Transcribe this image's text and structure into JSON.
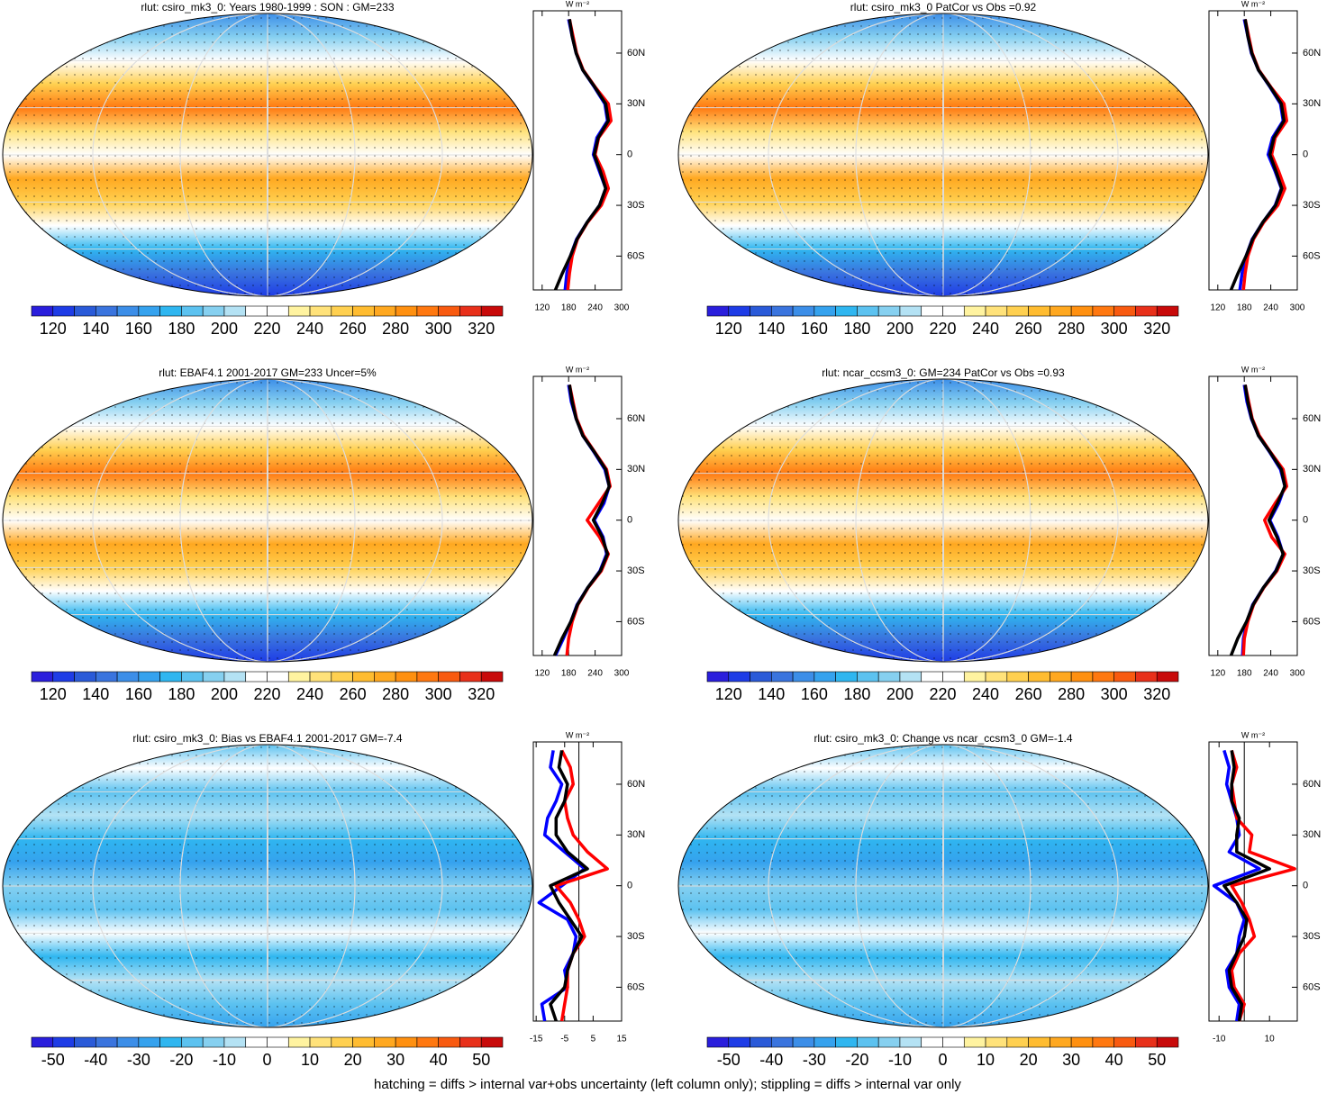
{
  "palette": [
    "#2a1edc",
    "#1e3ce6",
    "#2a5ad8",
    "#3a74de",
    "#3c8ee8",
    "#35a2ee",
    "#2fb6f0",
    "#5cc2f0",
    "#86d0f0",
    "#b4e2f4",
    "#ffffff",
    "#ffffff",
    "#fff3a0",
    "#ffe27a",
    "#ffd050",
    "#ffbc30",
    "#ffa820",
    "#ff9010",
    "#ff7810",
    "#f85a10",
    "#e8301a",
    "#c80a0a"
  ],
  "footnote": "hatching = diffs > internal var+obs uncertainty (left column only); stippling = diffs > internal var only",
  "panels": [
    {
      "title": "rlut: csiro_mk3_0: Years 1980-1999 : SON : GM=233",
      "colorbar": {
        "lim": [
          110,
          330
        ],
        "ticks": [
          120,
          140,
          160,
          180,
          200,
          220,
          240,
          260,
          280,
          300,
          320
        ]
      },
      "profile": {
        "type": "line",
        "unit": "W m⁻²",
        "xlim": [
          100,
          300
        ],
        "xticks": [
          120,
          180,
          240,
          300
        ],
        "ylim": [
          -80,
          85
        ],
        "yticks": [
          {
            "value": -60,
            "label": "60S"
          },
          {
            "value": -30,
            "label": "30S"
          },
          0,
          {
            "value": 30,
            "label": "30N"
          },
          {
            "value": 60,
            "label": "60N"
          }
        ],
        "lat": [
          -80,
          -70,
          -60,
          -50,
          -40,
          -30,
          -20,
          -10,
          0,
          10,
          20,
          30,
          40,
          50,
          60,
          70,
          80
        ],
        "series": [
          {
            "color": "#0000ff",
            "values": [
              172,
              176,
              184,
              198,
              222,
              250,
              264,
              250,
              236,
              244,
              268,
              262,
              238,
              212,
              197,
              188,
              180
            ]
          },
          {
            "color": "#ff0000",
            "values": [
              178,
              182,
              188,
              200,
              223,
              254,
              270,
              258,
              240,
              248,
              276,
              270,
              240,
              213,
              198,
              190,
              182
            ]
          },
          {
            "color": "#000000",
            "values": [
              150,
              166,
              184,
              199,
              222,
              250,
              264,
              252,
              238,
              247,
              270,
              264,
              239,
              212,
              197,
              188,
              182
            ]
          }
        ]
      }
    },
    {
      "title": "rlut: csiro_mk3_0 PatCor vs Obs =0.92",
      "colorbar": {
        "lim": [
          110,
          330
        ],
        "ticks": [
          120,
          140,
          160,
          180,
          200,
          220,
          240,
          260,
          280,
          300,
          320
        ]
      },
      "profile": {
        "type": "line",
        "unit": "W m⁻²",
        "xlim": [
          100,
          300
        ],
        "xticks": [
          120,
          180,
          240,
          300
        ],
        "ylim": [
          -80,
          85
        ],
        "yticks": [
          {
            "value": -60,
            "label": "60S"
          },
          {
            "value": -30,
            "label": "30S"
          },
          0,
          {
            "value": 30,
            "label": "30N"
          },
          {
            "value": 60,
            "label": "60N"
          }
        ],
        "lat": [
          -80,
          -70,
          -60,
          -50,
          -40,
          -30,
          -20,
          -10,
          0,
          10,
          20,
          30,
          40,
          50,
          60,
          70,
          80
        ],
        "series": [
          {
            "color": "#0000ff",
            "values": [
              170,
              175,
              184,
              198,
              222,
              250,
              264,
              250,
              234,
              244,
              268,
              262,
              238,
              212,
              196,
              188,
              180
            ]
          },
          {
            "color": "#ff0000",
            "values": [
              178,
              182,
              188,
              201,
              224,
              256,
              272,
              258,
              242,
              250,
              276,
              270,
              240,
              213,
              198,
              190,
              182
            ]
          },
          {
            "color": "#000000",
            "values": [
              150,
              166,
              184,
              199,
              222,
              251,
              265,
              252,
              238,
              247,
              270,
              264,
              239,
              212,
              197,
              188,
              182
            ]
          }
        ]
      }
    },
    {
      "title": "rlut: EBAF4.1 2001-2017 GM=233 Uncer=5%",
      "colorbar": {
        "lim": [
          110,
          330
        ],
        "ticks": [
          120,
          140,
          160,
          180,
          200,
          220,
          240,
          260,
          280,
          300,
          320
        ]
      },
      "profile": {
        "type": "line",
        "unit": "W m⁻²",
        "xlim": [
          100,
          300
        ],
        "xticks": [
          120,
          180,
          240,
          300
        ],
        "ylim": [
          -80,
          85
        ],
        "yticks": [
          {
            "value": -60,
            "label": "60S"
          },
          {
            "value": -30,
            "label": "30S"
          },
          0,
          {
            "value": 30,
            "label": "30N"
          },
          {
            "value": 60,
            "label": "60N"
          }
        ],
        "lat": [
          -80,
          -70,
          -60,
          -50,
          -40,
          -30,
          -20,
          -10,
          0,
          10,
          20,
          30,
          40,
          50,
          60,
          70,
          80
        ],
        "series": [
          {
            "color": "#0000ff",
            "values": [
              150,
              168,
              185,
              199,
              223,
              251,
              266,
              258,
              238,
              260,
              272,
              262,
              238,
              212,
              197,
              186,
              180
            ]
          },
          {
            "color": "#ff0000",
            "values": [
              176,
              180,
              188,
              201,
              224,
              254,
              270,
              250,
              222,
              248,
              274,
              266,
              240,
              214,
              198,
              190,
              182
            ]
          },
          {
            "color": "#000000",
            "values": [
              148,
              165,
              185,
              200,
              223,
              252,
              268,
              256,
              236,
              256,
              272,
              264,
              239,
              212,
              197,
              188,
              182
            ]
          }
        ]
      }
    },
    {
      "title": "rlut: ncar_ccsm3_0: GM=234 PatCor vs Obs =0.93",
      "colorbar": {
        "lim": [
          110,
          330
        ],
        "ticks": [
          120,
          140,
          160,
          180,
          200,
          220,
          240,
          260,
          280,
          300,
          320
        ]
      },
      "profile": {
        "type": "line",
        "unit": "W m⁻²",
        "xlim": [
          100,
          300
        ],
        "xticks": [
          120,
          180,
          240,
          300
        ],
        "ylim": [
          -80,
          85
        ],
        "yticks": [
          {
            "value": -60,
            "label": "60S"
          },
          {
            "value": -30,
            "label": "30S"
          },
          0,
          {
            "value": 30,
            "label": "30N"
          },
          {
            "value": 60,
            "label": "60N"
          }
        ],
        "lat": [
          -80,
          -70,
          -60,
          -50,
          -40,
          -30,
          -20,
          -10,
          0,
          10,
          20,
          30,
          40,
          50,
          60,
          70,
          80
        ],
        "series": [
          {
            "color": "#0000ff",
            "values": [
              176,
              178,
              186,
              199,
              223,
              251,
              268,
              256,
              238,
              258,
              272,
              262,
              238,
              212,
              196,
              186,
              180
            ]
          },
          {
            "color": "#ff0000",
            "values": [
              178,
              180,
              188,
              201,
              224,
              254,
              272,
              242,
              226,
              250,
              276,
              268,
              240,
              214,
              198,
              190,
              182
            ]
          },
          {
            "color": "#000000",
            "values": [
              150,
              165,
              185,
              200,
              223,
              252,
              268,
              254,
              236,
              255,
              272,
              264,
              239,
              212,
              197,
              188,
              182
            ]
          }
        ]
      }
    },
    {
      "title": "rlut: csiro_mk3_0: Bias vs EBAF4.1 2001-2017  GM=-7.4",
      "colorbar": {
        "lim": [
          -55,
          55
        ],
        "ticks": [
          -50,
          -40,
          -30,
          -20,
          -10,
          0,
          10,
          20,
          30,
          40,
          50
        ]
      },
      "profile": {
        "type": "line",
        "unit": "W m⁻²",
        "xlim": [
          -16,
          15
        ],
        "xticks": [
          -15,
          -5,
          5,
          15
        ],
        "ylim": [
          -80,
          85
        ],
        "yticks": [
          {
            "value": -60,
            "label": "60S"
          },
          {
            "value": -30,
            "label": "30S"
          },
          0,
          {
            "value": 30,
            "label": "30N"
          },
          {
            "value": 60,
            "label": "60N"
          }
        ],
        "lat": [
          -80,
          -70,
          -60,
          -50,
          -40,
          -30,
          -20,
          -10,
          0,
          10,
          20,
          30,
          40,
          50,
          60,
          70,
          80
        ],
        "series": [
          {
            "color": "#0000ff",
            "values": [
              -12,
              -13,
              -4,
              -5,
              -2,
              -1,
              -4,
              -14,
              -6,
              2,
              -5,
              -12,
              -11,
              -8,
              -6,
              -10,
              -9
            ]
          },
          {
            "color": "#ff0000",
            "values": [
              -6,
              -5,
              -4,
              -4,
              -2,
              2,
              0,
              -3,
              -8,
              10,
              3,
              -2,
              -4,
              -5,
              -2,
              -3,
              -6
            ]
          },
          {
            "color": "#000000",
            "values": [
              -8,
              -10,
              -5,
              -4,
              -2,
              1,
              -3,
              -7,
              -10,
              3,
              -4,
              -8,
              -8,
              -5,
              -4,
              -7,
              -6
            ]
          }
        ]
      }
    },
    {
      "title": "rlut: csiro_mk3_0: Change vs ncar_ccsm3_0 GM=-1.4",
      "colorbar": {
        "lim": [
          -55,
          55
        ],
        "ticks": [
          -50,
          -40,
          -30,
          -20,
          -10,
          0,
          10,
          20,
          30,
          40,
          50
        ]
      },
      "profile": {
        "type": "line",
        "unit": "W m⁻²",
        "xlim": [
          -14,
          21
        ],
        "xticks": [
          -10,
          10
        ],
        "ylim": [
          -80,
          85
        ],
        "yticks": [
          {
            "value": -60,
            "label": "60S"
          },
          {
            "value": -30,
            "label": "30S"
          },
          0,
          {
            "value": 30,
            "label": "30N"
          },
          {
            "value": 60,
            "label": "60N"
          }
        ],
        "lat": [
          -80,
          -70,
          -60,
          -50,
          -40,
          -30,
          -20,
          -10,
          0,
          10,
          20,
          30,
          40,
          50,
          60,
          70,
          80
        ],
        "series": [
          {
            "color": "#0000ff",
            "values": [
              -3,
              -2,
              -6,
              -7,
              -3,
              -2,
              0,
              -3,
              -12,
              6,
              -6,
              -2,
              -3,
              -5,
              -7,
              -6,
              -8
            ]
          },
          {
            "color": "#ff0000",
            "values": [
              -2,
              0,
              -4,
              -5,
              -2,
              4,
              2,
              -1,
              -5,
              20,
              2,
              3,
              -3,
              -4,
              -5,
              -3,
              -5
            ]
          },
          {
            "color": "#000000",
            "values": [
              -2,
              -1,
              -5,
              -6,
              -3,
              0,
              1,
              -3,
              -8,
              10,
              -3,
              -3,
              -2,
              -5,
              -5,
              -4,
              -5
            ]
          }
        ]
      }
    }
  ]
}
